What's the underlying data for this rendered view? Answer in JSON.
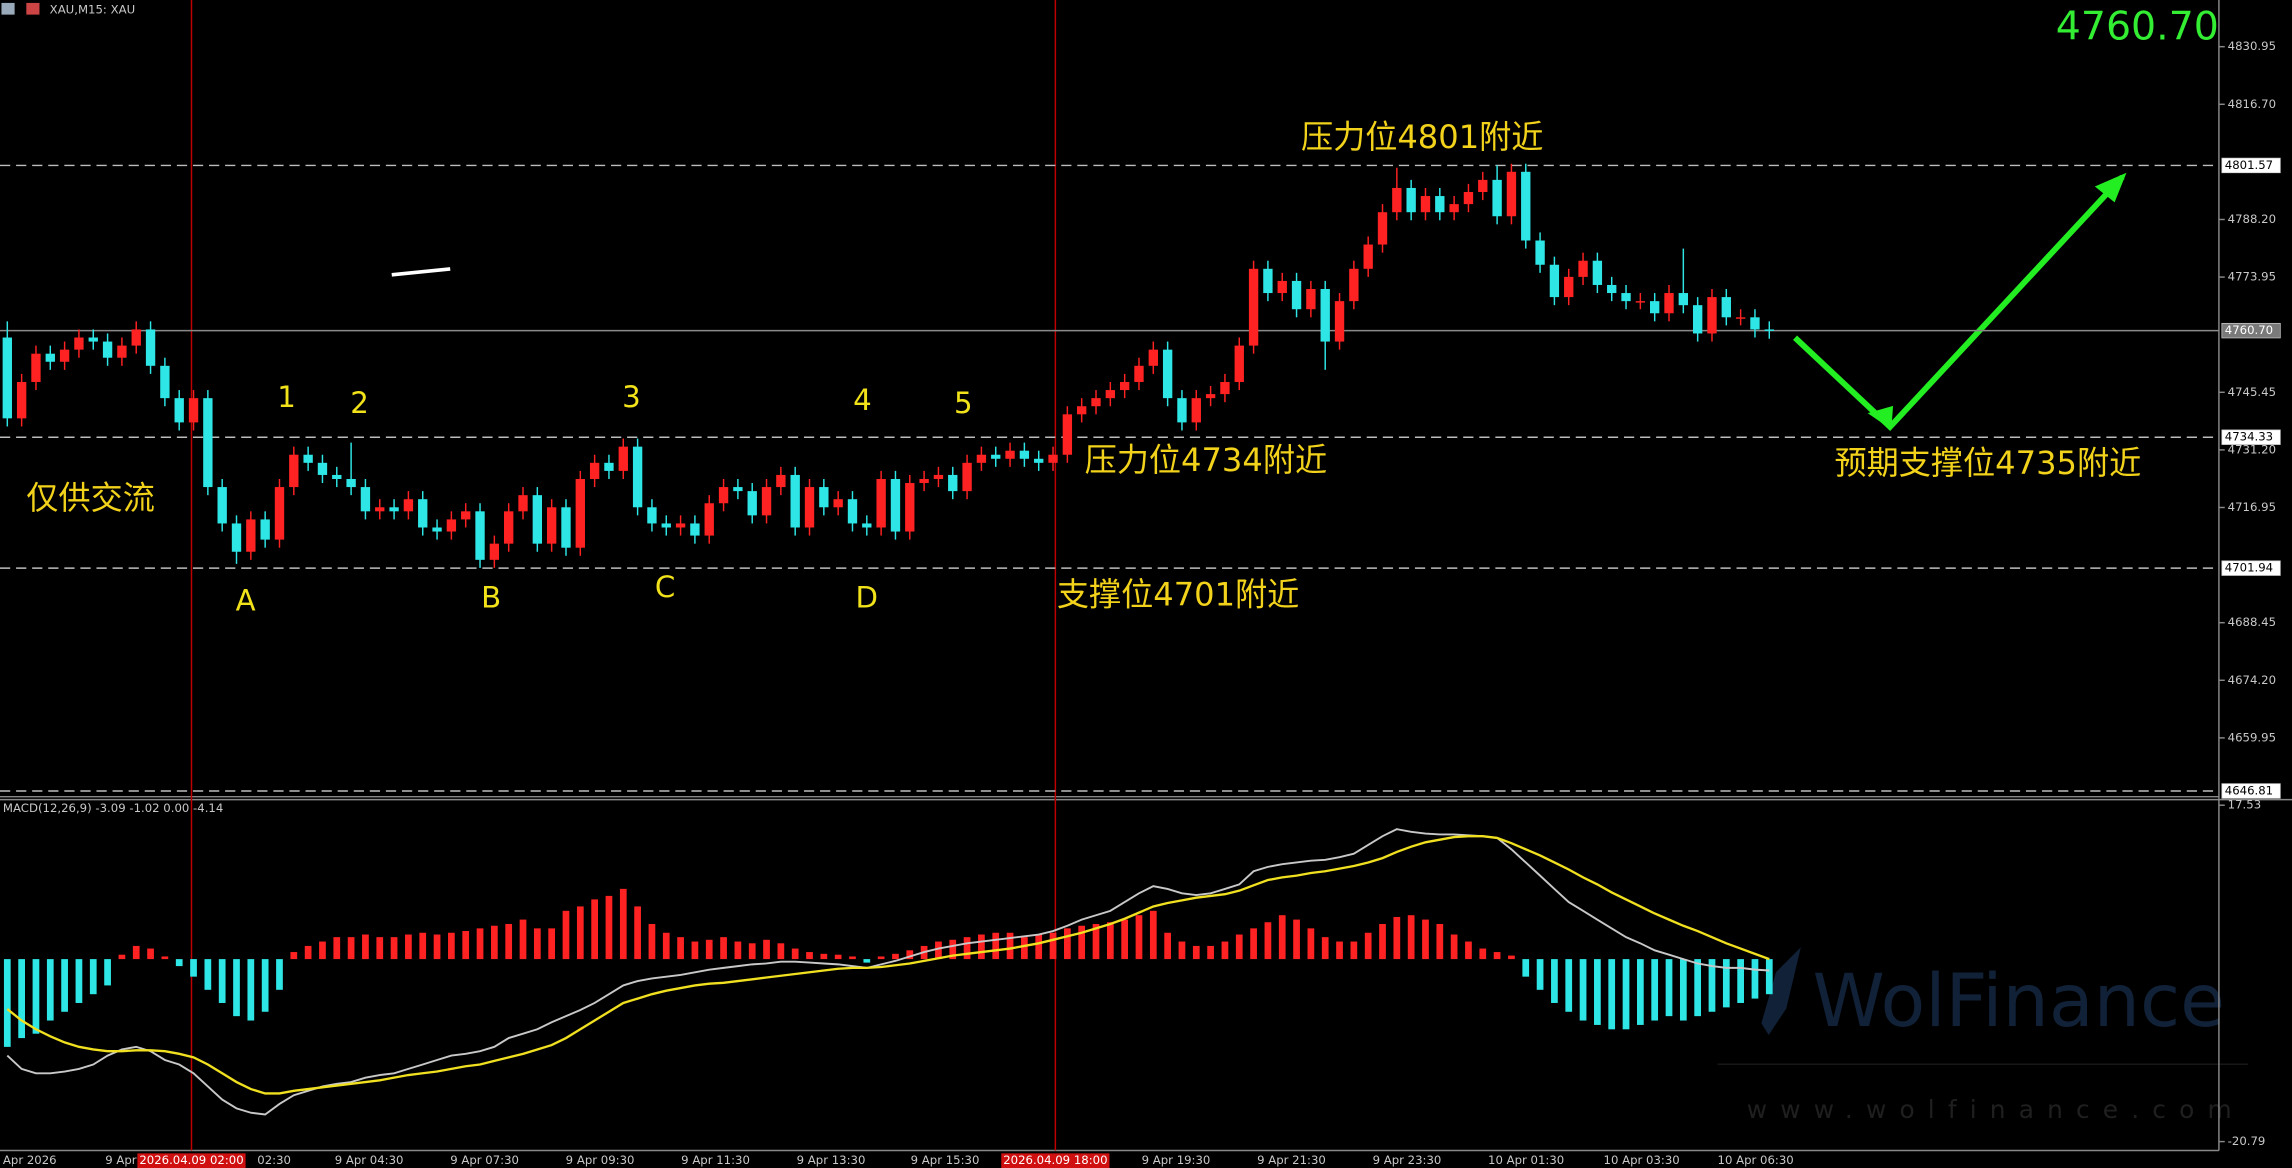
{
  "chart_data": [
    {
      "type": "candlestick",
      "title": "XAU,M15: XAU",
      "last_price": "4760.70",
      "last_price_color": "#33ee33",
      "up_color": "#ff2222",
      "down_color": "#2ee6e6",
      "open": [
        4759,
        4739,
        4748,
        4755,
        4753,
        4756,
        4759,
        4758,
        4754,
        4757,
        4761,
        4752,
        4744,
        4738,
        4744,
        4722,
        4713,
        4706,
        4714,
        4709,
        4722,
        4730,
        4728,
        4725,
        4724,
        4722,
        4716,
        4717,
        4716,
        4719,
        4712,
        4711,
        4714,
        4716,
        4704,
        4708,
        4716,
        4720,
        4708,
        4717,
        4707,
        4724,
        4728,
        4726,
        4732,
        4717,
        4713,
        4712,
        4713,
        4710,
        4718,
        4722,
        4721,
        4715,
        4722,
        4725,
        4712,
        4722,
        4717,
        4719,
        4713,
        4712,
        4724,
        4711,
        4723,
        4724,
        4725,
        4721,
        4728,
        4730,
        4729,
        4731,
        4729,
        4728,
        4730,
        4740,
        4742,
        4744,
        4746,
        4748,
        4752,
        4756,
        4744,
        4738,
        4744,
        4745,
        4748,
        4757,
        4776,
        4770,
        4773,
        4766,
        4771,
        4758,
        4768,
        4776,
        4782,
        4790,
        4796,
        4790,
        4794,
        4790,
        4792,
        4795,
        4798,
        4789,
        4800,
        4783,
        4777,
        4769,
        4774,
        4778,
        4772,
        4770,
        4768,
        4768,
        4765,
        4770,
        4767,
        4760,
        4769,
        4764,
        4764,
        4761
      ],
      "high": [
        4763,
        4750,
        4757,
        4757,
        4758,
        4761,
        4761,
        4760,
        4759,
        4763,
        4763,
        4754,
        4746,
        4746,
        4746,
        4724,
        4715,
        4716,
        4716,
        4724,
        4732,
        4732,
        4730,
        4727,
        4733,
        4724,
        4719,
        4719,
        4721,
        4721,
        4714,
        4716,
        4718,
        4718,
        4710,
        4718,
        4722,
        4722,
        4719,
        4719,
        4726,
        4730,
        4730,
        4734,
        4734,
        4719,
        4715,
        4715,
        4715,
        4720,
        4724,
        4724,
        4723,
        4724,
        4727,
        4727,
        4724,
        4724,
        4721,
        4721,
        4715,
        4726,
        4726,
        4725,
        4726,
        4727,
        4727,
        4730,
        4732,
        4732,
        4733,
        4733,
        4731,
        4732,
        4742,
        4744,
        4746,
        4748,
        4750,
        4754,
        4758,
        4758,
        4746,
        4746,
        4747,
        4750,
        4759,
        4778,
        4778,
        4775,
        4775,
        4773,
        4773,
        4770,
        4778,
        4784,
        4792,
        4801,
        4798,
        4796,
        4796,
        4794,
        4797,
        4800,
        4801.6,
        4802,
        4802,
        4785,
        4779,
        4776,
        4780,
        4780,
        4774,
        4772,
        4770,
        4770,
        4772,
        4781,
        4769,
        4771,
        4771,
        4766,
        4766,
        4763
      ],
      "low": [
        4737,
        4737,
        4746,
        4751,
        4751,
        4754,
        4756,
        4752,
        4752,
        4755,
        4750,
        4742,
        4736,
        4736,
        4720,
        4711,
        4703,
        4704,
        4707,
        4707,
        4720,
        4726,
        4723,
        4722,
        4720,
        4714,
        4714,
        4714,
        4714,
        4710,
        4709,
        4709,
        4712,
        4702,
        4702,
        4706,
        4714,
        4706,
        4706,
        4705,
        4705,
        4722,
        4724,
        4724,
        4715,
        4711,
        4710,
        4710,
        4708,
        4708,
        4716,
        4719,
        4713,
        4713,
        4720,
        4710,
        4710,
        4715,
        4715,
        4711,
        4710,
        4710,
        4709,
        4709,
        4721,
        4722,
        4719,
        4719,
        4726,
        4727,
        4727,
        4727,
        4726,
        4726,
        4728,
        4738,
        4740,
        4742,
        4744,
        4746,
        4750,
        4742,
        4736,
        4736,
        4742,
        4743,
        4746,
        4755,
        4768,
        4768,
        4764,
        4764,
        4751,
        4756,
        4766,
        4774,
        4780,
        4788,
        4788,
        4788,
        4788,
        4788,
        4790,
        4793,
        4787,
        4787,
        4781,
        4775,
        4767,
        4767,
        4772,
        4770,
        4768,
        4766,
        4766,
        4763,
        4763,
        4765,
        4758,
        4758,
        4762,
        4762,
        4759,
        4758.7
      ],
      "close": [
        4739,
        4748,
        4755,
        4753,
        4756,
        4759,
        4758,
        4754,
        4757,
        4761,
        4752,
        4744,
        4738,
        4744,
        4722,
        4713,
        4706,
        4714,
        4709,
        4722,
        4730,
        4728,
        4725,
        4724,
        4722,
        4716,
        4717,
        4716,
        4719,
        4712,
        4711,
        4714,
        4716,
        4704,
        4708,
        4716,
        4720,
        4708,
        4717,
        4707,
        4724,
        4728,
        4726,
        4732,
        4717,
        4713,
        4712,
        4713,
        4710,
        4718,
        4722,
        4721,
        4715,
        4722,
        4725,
        4712,
        4722,
        4717,
        4719,
        4713,
        4712,
        4724,
        4711,
        4723,
        4724,
        4725,
        4721,
        4728,
        4730,
        4729,
        4731,
        4729,
        4728,
        4730,
        4740,
        4742,
        4744,
        4746,
        4748,
        4752,
        4756,
        4744,
        4738,
        4744,
        4745,
        4748,
        4757,
        4776,
        4770,
        4773,
        4766,
        4771,
        4758,
        4768,
        4776,
        4782,
        4790,
        4796,
        4790,
        4794,
        4790,
        4792,
        4795,
        4798,
        4789,
        4800,
        4783,
        4777,
        4769,
        4774,
        4778,
        4772,
        4770,
        4768,
        4768,
        4765,
        4770,
        4767,
        4760,
        4769,
        4764,
        4764,
        4761,
        4760.7
      ],
      "ylim": [
        4645.4,
        4842.5
      ],
      "yticks": [
        {
          "value": 4830.95,
          "label": "4830.95"
        },
        {
          "value": 4816.7,
          "label": "4816.70"
        },
        {
          "value": 4788.2,
          "label": "4788.20"
        },
        {
          "value": 4773.95,
          "label": "4773.95"
        },
        {
          "value": 4745.45,
          "label": "4745.45"
        },
        {
          "value": 4731.2,
          "label": "4731.20"
        },
        {
          "value": 4716.95,
          "label": "4716.95"
        },
        {
          "value": 4688.45,
          "label": "4688.45"
        },
        {
          "value": 4674.2,
          "label": "4674.20"
        },
        {
          "value": 4659.95,
          "label": "4659.95"
        }
      ],
      "hlines": [
        {
          "value": 4801.57,
          "label": "4801.57",
          "style": "dashed"
        },
        {
          "value": 4760.7,
          "label": "4760.70",
          "style": "solid"
        },
        {
          "value": 4734.33,
          "label": "4734.33",
          "style": "dashed"
        },
        {
          "value": 4701.94,
          "label": "4701.94",
          "style": "dashed"
        },
        {
          "value": 4646.81,
          "label": "4646.81",
          "style": "dashed"
        }
      ],
      "x_labels": [
        "Apr 2026",
        "9 Apr",
        "02:30",
        "9 Apr 04:30",
        "9 Apr 07:30",
        "9 Apr 09:30",
        "9 Apr 11:30",
        "9 Apr 13:30",
        "9 Apr 15:30",
        "9 Apr 19:30",
        "9 Apr 21:30",
        "9 Apr 23:30",
        "10 Apr 01:30",
        "10 Apr 03:30",
        "10 Apr 06:30"
      ],
      "time_markers": [
        "2026.04.09 02:00",
        "2026.04.09 18:00"
      ],
      "annotations": [
        "压力位4801附近",
        "压力位4734附近",
        "支撑位4701附近",
        "预期支撑位4735附近",
        "仅供交流"
      ],
      "wave_labels": [
        "A",
        "B",
        "C",
        "D",
        "1",
        "2",
        "3",
        "4",
        "5"
      ]
    },
    {
      "type": "macd",
      "title": "MACD(12,26,9) -3.09 -1.02 0.00 -4.14",
      "ylim": [
        -21.8,
        18.0
      ],
      "yticks": [
        17.53,
        -20.79
      ],
      "histogram": {
        "up_color": "#ff2222",
        "down_color": "#2ee6e6",
        "values": [
          -10,
          -9,
          -8.5,
          -7,
          -6,
          -5,
          -4,
          -3,
          0.5,
          1.5,
          1.2,
          0.3,
          -0.8,
          -2,
          -3.5,
          -5,
          -6.5,
          -7,
          -6,
          -3.5,
          0.8,
          1.5,
          2,
          2.5,
          2.5,
          2.8,
          2.5,
          2.5,
          2.8,
          3,
          2.8,
          3,
          3.2,
          3.5,
          3.8,
          4,
          4.5,
          3.5,
          3.5,
          5.5,
          6,
          6.8,
          7.2,
          8,
          6,
          4,
          3,
          2.5,
          2,
          2.2,
          2.5,
          2,
          1.8,
          2.2,
          1.8,
          1.2,
          0.8,
          0.6,
          0.5,
          0.3,
          -0.4,
          0.3,
          0.6,
          1,
          1.5,
          2,
          2.2,
          2.5,
          2.8,
          3,
          3,
          2.5,
          2.8,
          3,
          3.5,
          3.8,
          4,
          4.2,
          4.5,
          5,
          5.5,
          3,
          2,
          1.5,
          1.5,
          2,
          2.8,
          3.5,
          4.2,
          5,
          4.5,
          3.5,
          2.5,
          2,
          2,
          3,
          4,
          4.8,
          5,
          4.5,
          4,
          2.8,
          2,
          1.2,
          0.8,
          0.4,
          -2,
          -3.5,
          -5,
          -6,
          -7,
          -7.5,
          -8,
          -8,
          -7.5,
          -7,
          -6.5,
          -7,
          -6.5,
          -6,
          -5.5,
          -5,
          -4.5,
          -4
        ]
      },
      "main": {
        "color": "#c8c8c8",
        "values": [
          -11,
          -12.5,
          -13,
          -13,
          -12.8,
          -12.5,
          -12,
          -11,
          -10.3,
          -10,
          -10.5,
          -11.5,
          -12,
          -13,
          -14.5,
          -16,
          -17,
          -17.5,
          -17.7,
          -16.5,
          -15.5,
          -15,
          -14.5,
          -14.2,
          -14,
          -13.5,
          -13.2,
          -13,
          -12.5,
          -12,
          -11.5,
          -11,
          -10.8,
          -10.5,
          -10,
          -9,
          -8.5,
          -8,
          -7.2,
          -6.5,
          -5.8,
          -5,
          -4,
          -3,
          -2.5,
          -2.2,
          -2,
          -1.8,
          -1.5,
          -1.2,
          -1,
          -0.8,
          -0.6,
          -0.5,
          -0.3,
          -0.3,
          -0.4,
          -0.5,
          -0.6,
          -0.8,
          -1,
          -0.6,
          -0.2,
          0.3,
          0.8,
          1.2,
          1.5,
          1.8,
          2,
          2.2,
          2.4,
          2.6,
          2.8,
          3.2,
          3.8,
          4.5,
          5,
          5.5,
          6.5,
          7.5,
          8.3,
          8,
          7.5,
          7.3,
          7.5,
          8,
          8.5,
          10,
          10.5,
          10.8,
          11,
          11.2,
          11.3,
          11.6,
          12,
          13,
          14,
          14.8,
          14.5,
          14.3,
          14.2,
          14.2,
          14.1,
          14,
          13.8,
          12.5,
          11,
          9.5,
          8,
          6.5,
          5.5,
          4.5,
          3.5,
          2.5,
          1.8,
          1,
          0.5,
          0,
          -0.5,
          -0.8,
          -1,
          -1,
          -1.2,
          -1.3
        ]
      },
      "signal": {
        "color": "#f0e020",
        "values": [
          -5.7,
          -7,
          -8,
          -8.8,
          -9.5,
          -10,
          -10.3,
          -10.5,
          -10.5,
          -10.4,
          -10.4,
          -10.5,
          -10.8,
          -11.2,
          -12,
          -13,
          -14,
          -14.8,
          -15.3,
          -15.3,
          -15,
          -14.8,
          -14.6,
          -14.4,
          -14.2,
          -14,
          -13.8,
          -13.5,
          -13.2,
          -13,
          -12.8,
          -12.5,
          -12.2,
          -12,
          -11.6,
          -11.2,
          -10.8,
          -10.3,
          -9.8,
          -9,
          -8,
          -7,
          -6,
          -5,
          -4.5,
          -4,
          -3.6,
          -3.3,
          -3,
          -2.8,
          -2.7,
          -2.5,
          -2.3,
          -2.1,
          -1.9,
          -1.7,
          -1.5,
          -1.3,
          -1.1,
          -1,
          -1,
          -0.9,
          -0.7,
          -0.5,
          -0.2,
          0.1,
          0.4,
          0.6,
          0.8,
          1,
          1.2,
          1.5,
          1.8,
          2.2,
          2.6,
          3,
          3.5,
          4,
          4.6,
          5.3,
          6,
          6.4,
          6.7,
          7,
          7.2,
          7.4,
          7.8,
          8.4,
          9,
          9.3,
          9.5,
          9.8,
          10,
          10.3,
          10.6,
          11,
          11.5,
          12.2,
          12.8,
          13.3,
          13.6,
          13.9,
          14,
          14,
          13.8,
          13.2,
          12.5,
          11.8,
          11,
          10.2,
          9.3,
          8.5,
          7.6,
          6.8,
          6,
          5.2,
          4.5,
          3.8,
          3.2,
          2.5,
          1.8,
          1.2,
          0.6,
          0
        ]
      }
    }
  ],
  "watermark": {
    "brand": "WolFinance",
    "url": "www.wolfinance.com"
  }
}
